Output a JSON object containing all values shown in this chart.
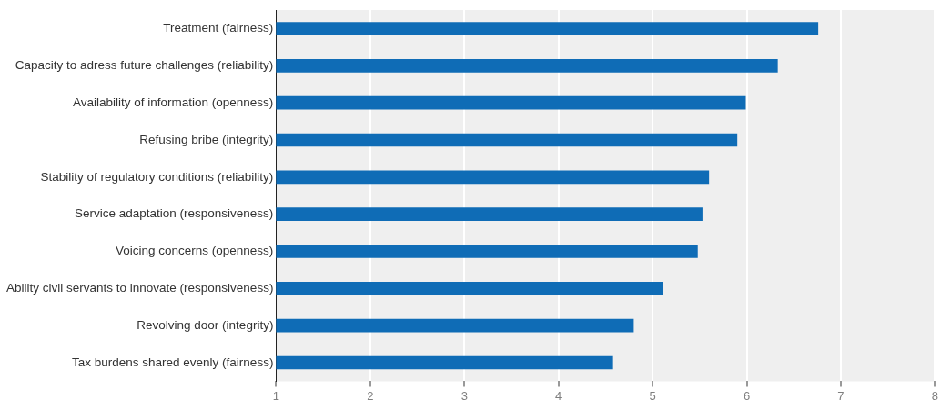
{
  "chart_data": {
    "type": "bar",
    "orientation": "horizontal",
    "categories": [
      "Treatment (fairness)",
      "Capacity to adress future challenges (reliability)",
      "Availability of information (openness)",
      "Refusing bribe (integrity)",
      "Stability of regulatory conditions (reliability)",
      "Service adaptation (responsiveness)",
      "Voicing concerns (openness)",
      "Ability civil servants to innovate (responsiveness)",
      "Revolving door (integrity)",
      "Tax burdens shared evenly (fairness)"
    ],
    "values": [
      6.76,
      6.33,
      5.99,
      5.9,
      5.6,
      5.53,
      5.48,
      5.11,
      4.8,
      4.58
    ],
    "color": "#0f6cb6",
    "xlim": [
      1,
      8
    ],
    "xticks": [
      1,
      2,
      3,
      4,
      5,
      6,
      7,
      8
    ],
    "grid": "x"
  }
}
